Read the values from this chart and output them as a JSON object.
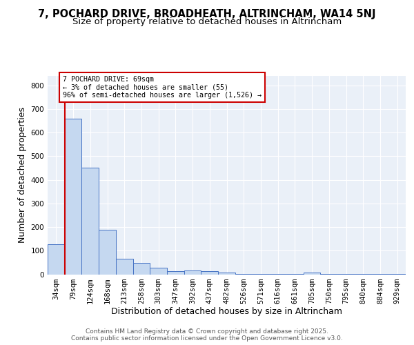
{
  "title_line1": "7, POCHARD DRIVE, BROADHEATH, ALTRINCHAM, WA14 5NJ",
  "title_line2": "Size of property relative to detached houses in Altrincham",
  "xlabel": "Distribution of detached houses by size in Altrincham",
  "ylabel": "Number of detached properties",
  "bar_labels": [
    "34sqm",
    "79sqm",
    "124sqm",
    "168sqm",
    "213sqm",
    "258sqm",
    "303sqm",
    "347sqm",
    "392sqm",
    "437sqm",
    "482sqm",
    "526sqm",
    "571sqm",
    "616sqm",
    "661sqm",
    "705sqm",
    "750sqm",
    "795sqm",
    "840sqm",
    "884sqm",
    "929sqm"
  ],
  "bar_values": [
    128,
    660,
    450,
    188,
    65,
    47,
    28,
    12,
    16,
    14,
    8,
    2,
    2,
    2,
    1,
    8,
    1,
    1,
    1,
    1,
    1
  ],
  "bar_color": "#c5d8f0",
  "bar_edge_color": "#4472c4",
  "red_line_color": "#cc0000",
  "annotation_text": "7 POCHARD DRIVE: 69sqm\n← 3% of detached houses are smaller (55)\n96% of semi-detached houses are larger (1,526) →",
  "annotation_box_color": "white",
  "annotation_box_edge_color": "#cc0000",
  "ylim": [
    0,
    840
  ],
  "yticks": [
    0,
    100,
    200,
    300,
    400,
    500,
    600,
    700,
    800
  ],
  "bg_color": "#eaf0f8",
  "grid_color": "white",
  "footer_text": "Contains HM Land Registry data © Crown copyright and database right 2025.\nContains public sector information licensed under the Open Government Licence v3.0.",
  "title_fontsize": 10.5,
  "subtitle_fontsize": 9.5,
  "tick_fontsize": 7.5,
  "label_fontsize": 9,
  "footer_fontsize": 6.5
}
